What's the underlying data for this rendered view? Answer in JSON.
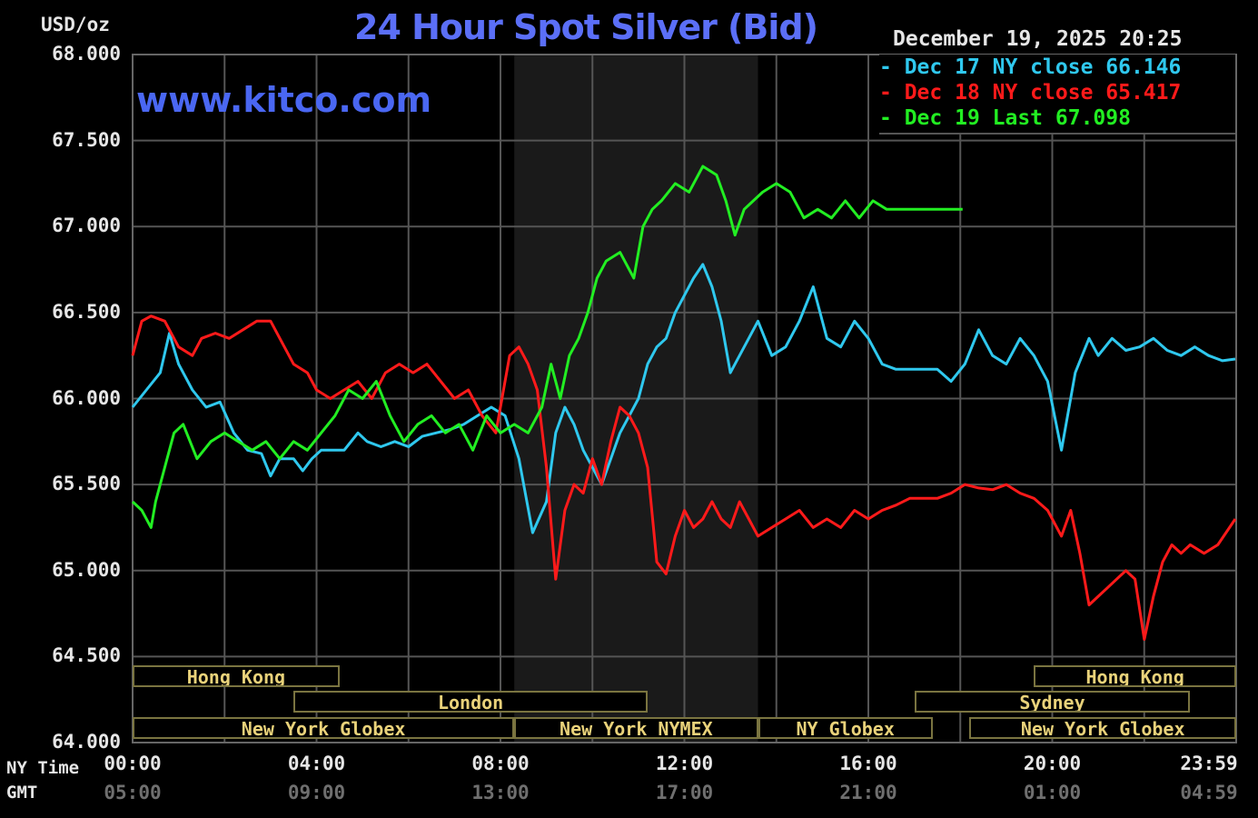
{
  "chart_data": {
    "type": "line",
    "title": "24 Hour Spot Silver (Bid)",
    "ylabel": "USD/oz",
    "watermark": "www.kitco.com",
    "timestamp": "December 19, 2025 20:25",
    "ylim": [
      64000,
      68000
    ],
    "y_ticks": [
      "68.000",
      "67.500",
      "67.000",
      "66.500",
      "66.000",
      "65.500",
      "65.000",
      "64.500",
      "64.000"
    ],
    "xlim": [
      0,
      24
    ],
    "x_ticks_ny": [
      "00:00",
      "04:00",
      "08:00",
      "12:00",
      "16:00",
      "20:00",
      "23:59"
    ],
    "x_ticks_gmt": [
      "05:00",
      "09:00",
      "13:00",
      "17:00",
      "21:00",
      "01:00",
      "04:59"
    ],
    "x_row_labels": {
      "ny": "NY Time",
      "gmt": "GMT"
    },
    "grid": true,
    "legend_position": "top-right",
    "shaded_region": {
      "from": 8.3,
      "to": 13.6
    },
    "series": [
      {
        "name": "Dec 17 NY close 66.146",
        "color": "#2fc8ee",
        "x": [
          0,
          0.3,
          0.6,
          0.8,
          1.0,
          1.3,
          1.6,
          1.9,
          2.2,
          2.5,
          2.8,
          3.0,
          3.2,
          3.5,
          3.7,
          3.9,
          4.1,
          4.3,
          4.6,
          4.9,
          5.1,
          5.4,
          5.7,
          6.0,
          6.3,
          6.6,
          6.9,
          7.2,
          7.5,
          7.8,
          8.1,
          8.4,
          8.7,
          9.0,
          9.2,
          9.4,
          9.6,
          9.8,
          10.0,
          10.2,
          10.4,
          10.6,
          10.8,
          11.0,
          11.2,
          11.4,
          11.6,
          11.8,
          12.0,
          12.2,
          12.4,
          12.6,
          12.8,
          13.0,
          13.3,
          13.6,
          13.9,
          14.2,
          14.5,
          14.8,
          15.1,
          15.4,
          15.7,
          16.0,
          16.3,
          16.6,
          16.9,
          17.2,
          17.5,
          17.8,
          18.1,
          18.4,
          18.7,
          19.0,
          19.3,
          19.6,
          19.9,
          20.2,
          20.5,
          20.8,
          21.0,
          21.3,
          21.6,
          21.9,
          22.2,
          22.5,
          22.8,
          23.1,
          23.4,
          23.7,
          23.98
        ],
        "y": [
          65950,
          66050,
          66150,
          66380,
          66200,
          66050,
          65950,
          65980,
          65800,
          65700,
          65680,
          65550,
          65650,
          65650,
          65580,
          65650,
          65700,
          65700,
          65700,
          65800,
          65750,
          65720,
          65750,
          65720,
          65780,
          65800,
          65820,
          65850,
          65900,
          65950,
          65900,
          65650,
          65220,
          65400,
          65800,
          65950,
          65850,
          65700,
          65600,
          65500,
          65650,
          65800,
          65900,
          66000,
          66200,
          66300,
          66350,
          66500,
          66600,
          66700,
          66780,
          66650,
          66450,
          66150,
          66300,
          66450,
          66250,
          66300,
          66450,
          66650,
          66350,
          66300,
          66450,
          66350,
          66200,
          66170,
          66170,
          66170,
          66170,
          66100,
          66200,
          66400,
          66250,
          66200,
          66350,
          66250,
          66100,
          65700,
          66150,
          66350,
          66250,
          66350,
          66280,
          66300,
          66350,
          66280,
          66250,
          66300,
          66250,
          66220,
          66230
        ]
      },
      {
        "name": "Dec 18 NY close 65.417",
        "color": "#ff1a1a",
        "x": [
          0,
          0.2,
          0.4,
          0.7,
          1.0,
          1.3,
          1.5,
          1.8,
          2.1,
          2.4,
          2.7,
          3.0,
          3.3,
          3.5,
          3.8,
          4.0,
          4.3,
          4.6,
          4.9,
          5.2,
          5.5,
          5.8,
          6.1,
          6.4,
          6.7,
          7.0,
          7.3,
          7.6,
          7.9,
          8.2,
          8.4,
          8.6,
          8.8,
          9.0,
          9.2,
          9.4,
          9.6,
          9.8,
          10.0,
          10.2,
          10.4,
          10.6,
          10.8,
          11.0,
          11.2,
          11.4,
          11.6,
          11.8,
          12.0,
          12.2,
          12.4,
          12.6,
          12.8,
          13.0,
          13.2,
          13.4,
          13.6,
          13.9,
          14.2,
          14.5,
          14.8,
          15.1,
          15.4,
          15.7,
          16.0,
          16.3,
          16.6,
          16.9,
          17.2,
          17.5,
          17.8,
          18.1,
          18.4,
          18.7,
          19.0,
          19.3,
          19.6,
          19.9,
          20.2,
          20.4,
          20.6,
          20.8,
          21.0,
          21.2,
          21.4,
          21.6,
          21.8,
          22.0,
          22.2,
          22.4,
          22.6,
          22.8,
          23.0,
          23.3,
          23.6,
          23.98
        ],
        "y": [
          66250,
          66450,
          66480,
          66450,
          66300,
          66250,
          66350,
          66380,
          66350,
          66400,
          66450,
          66450,
          66300,
          66200,
          66150,
          66050,
          66000,
          66050,
          66100,
          66000,
          66150,
          66200,
          66150,
          66200,
          66100,
          66000,
          66050,
          65900,
          65800,
          66250,
          66300,
          66200,
          66050,
          65600,
          64950,
          65350,
          65500,
          65450,
          65650,
          65500,
          65750,
          65950,
          65900,
          65800,
          65600,
          65050,
          64980,
          65200,
          65350,
          65250,
          65300,
          65400,
          65300,
          65250,
          65400,
          65300,
          65200,
          65250,
          65300,
          65350,
          65250,
          65300,
          65250,
          65350,
          65300,
          65350,
          65380,
          65420,
          65420,
          65420,
          65450,
          65500,
          65480,
          65470,
          65500,
          65450,
          65420,
          65350,
          65200,
          65350,
          65100,
          64800,
          64850,
          64900,
          64950,
          65000,
          64950,
          64600,
          64850,
          65050,
          65150,
          65100,
          65150,
          65100,
          65150,
          65300
        ]
      },
      {
        "name": "Dec 19 Last 67.098",
        "color": "#22ee22",
        "x": [
          0,
          0.2,
          0.4,
          0.5,
          0.7,
          0.9,
          1.1,
          1.4,
          1.7,
          2.0,
          2.3,
          2.6,
          2.9,
          3.2,
          3.5,
          3.8,
          4.1,
          4.4,
          4.7,
          5.0,
          5.3,
          5.6,
          5.9,
          6.2,
          6.5,
          6.8,
          7.1,
          7.4,
          7.7,
          8.0,
          8.3,
          8.6,
          8.9,
          9.1,
          9.3,
          9.5,
          9.7,
          9.9,
          10.1,
          10.3,
          10.6,
          10.9,
          11.1,
          11.3,
          11.5,
          11.8,
          12.1,
          12.4,
          12.7,
          12.9,
          13.1,
          13.3,
          13.5,
          13.7,
          14.0,
          14.3,
          14.6,
          14.9,
          15.2,
          15.5,
          15.8,
          16.1,
          16.4,
          16.7,
          17.0,
          17.3,
          17.6,
          17.9,
          18.05
        ],
        "y": [
          65400,
          65350,
          65250,
          65400,
          65600,
          65800,
          65850,
          65650,
          65750,
          65800,
          65750,
          65700,
          65750,
          65650,
          65750,
          65700,
          65800,
          65900,
          66050,
          66000,
          66100,
          65900,
          65750,
          65850,
          65900,
          65800,
          65850,
          65700,
          65900,
          65800,
          65850,
          65800,
          65950,
          66200,
          66000,
          66250,
          66350,
          66500,
          66700,
          66800,
          66850,
          66700,
          67000,
          67100,
          67150,
          67250,
          67200,
          67350,
          67300,
          67150,
          66950,
          67100,
          67150,
          67200,
          67250,
          67200,
          67050,
          67100,
          67050,
          67150,
          67050,
          67150,
          67100,
          67100,
          67100,
          67100,
          67100,
          67100,
          67100
        ]
      }
    ],
    "sessions": [
      {
        "row": 0,
        "label": "Hong Kong",
        "start": 0,
        "end": 4.5
      },
      {
        "row": 0,
        "label": "Hong Kong",
        "start": 19.6,
        "end": 24
      },
      {
        "row": 1,
        "label": "London",
        "start": 3.5,
        "end": 11.2
      },
      {
        "row": 1,
        "label": "Sydney",
        "start": 17.0,
        "end": 23.0
      },
      {
        "row": 2,
        "label": "New York Globex",
        "start": 0,
        "end": 8.3
      },
      {
        "row": 2,
        "label": "New York NYMEX",
        "start": 8.3,
        "end": 13.6
      },
      {
        "row": 2,
        "label": "NY Globex",
        "start": 13.6,
        "end": 17.4
      },
      {
        "row": 2,
        "label": "New York Globex",
        "start": 18.2,
        "end": 24
      }
    ]
  }
}
